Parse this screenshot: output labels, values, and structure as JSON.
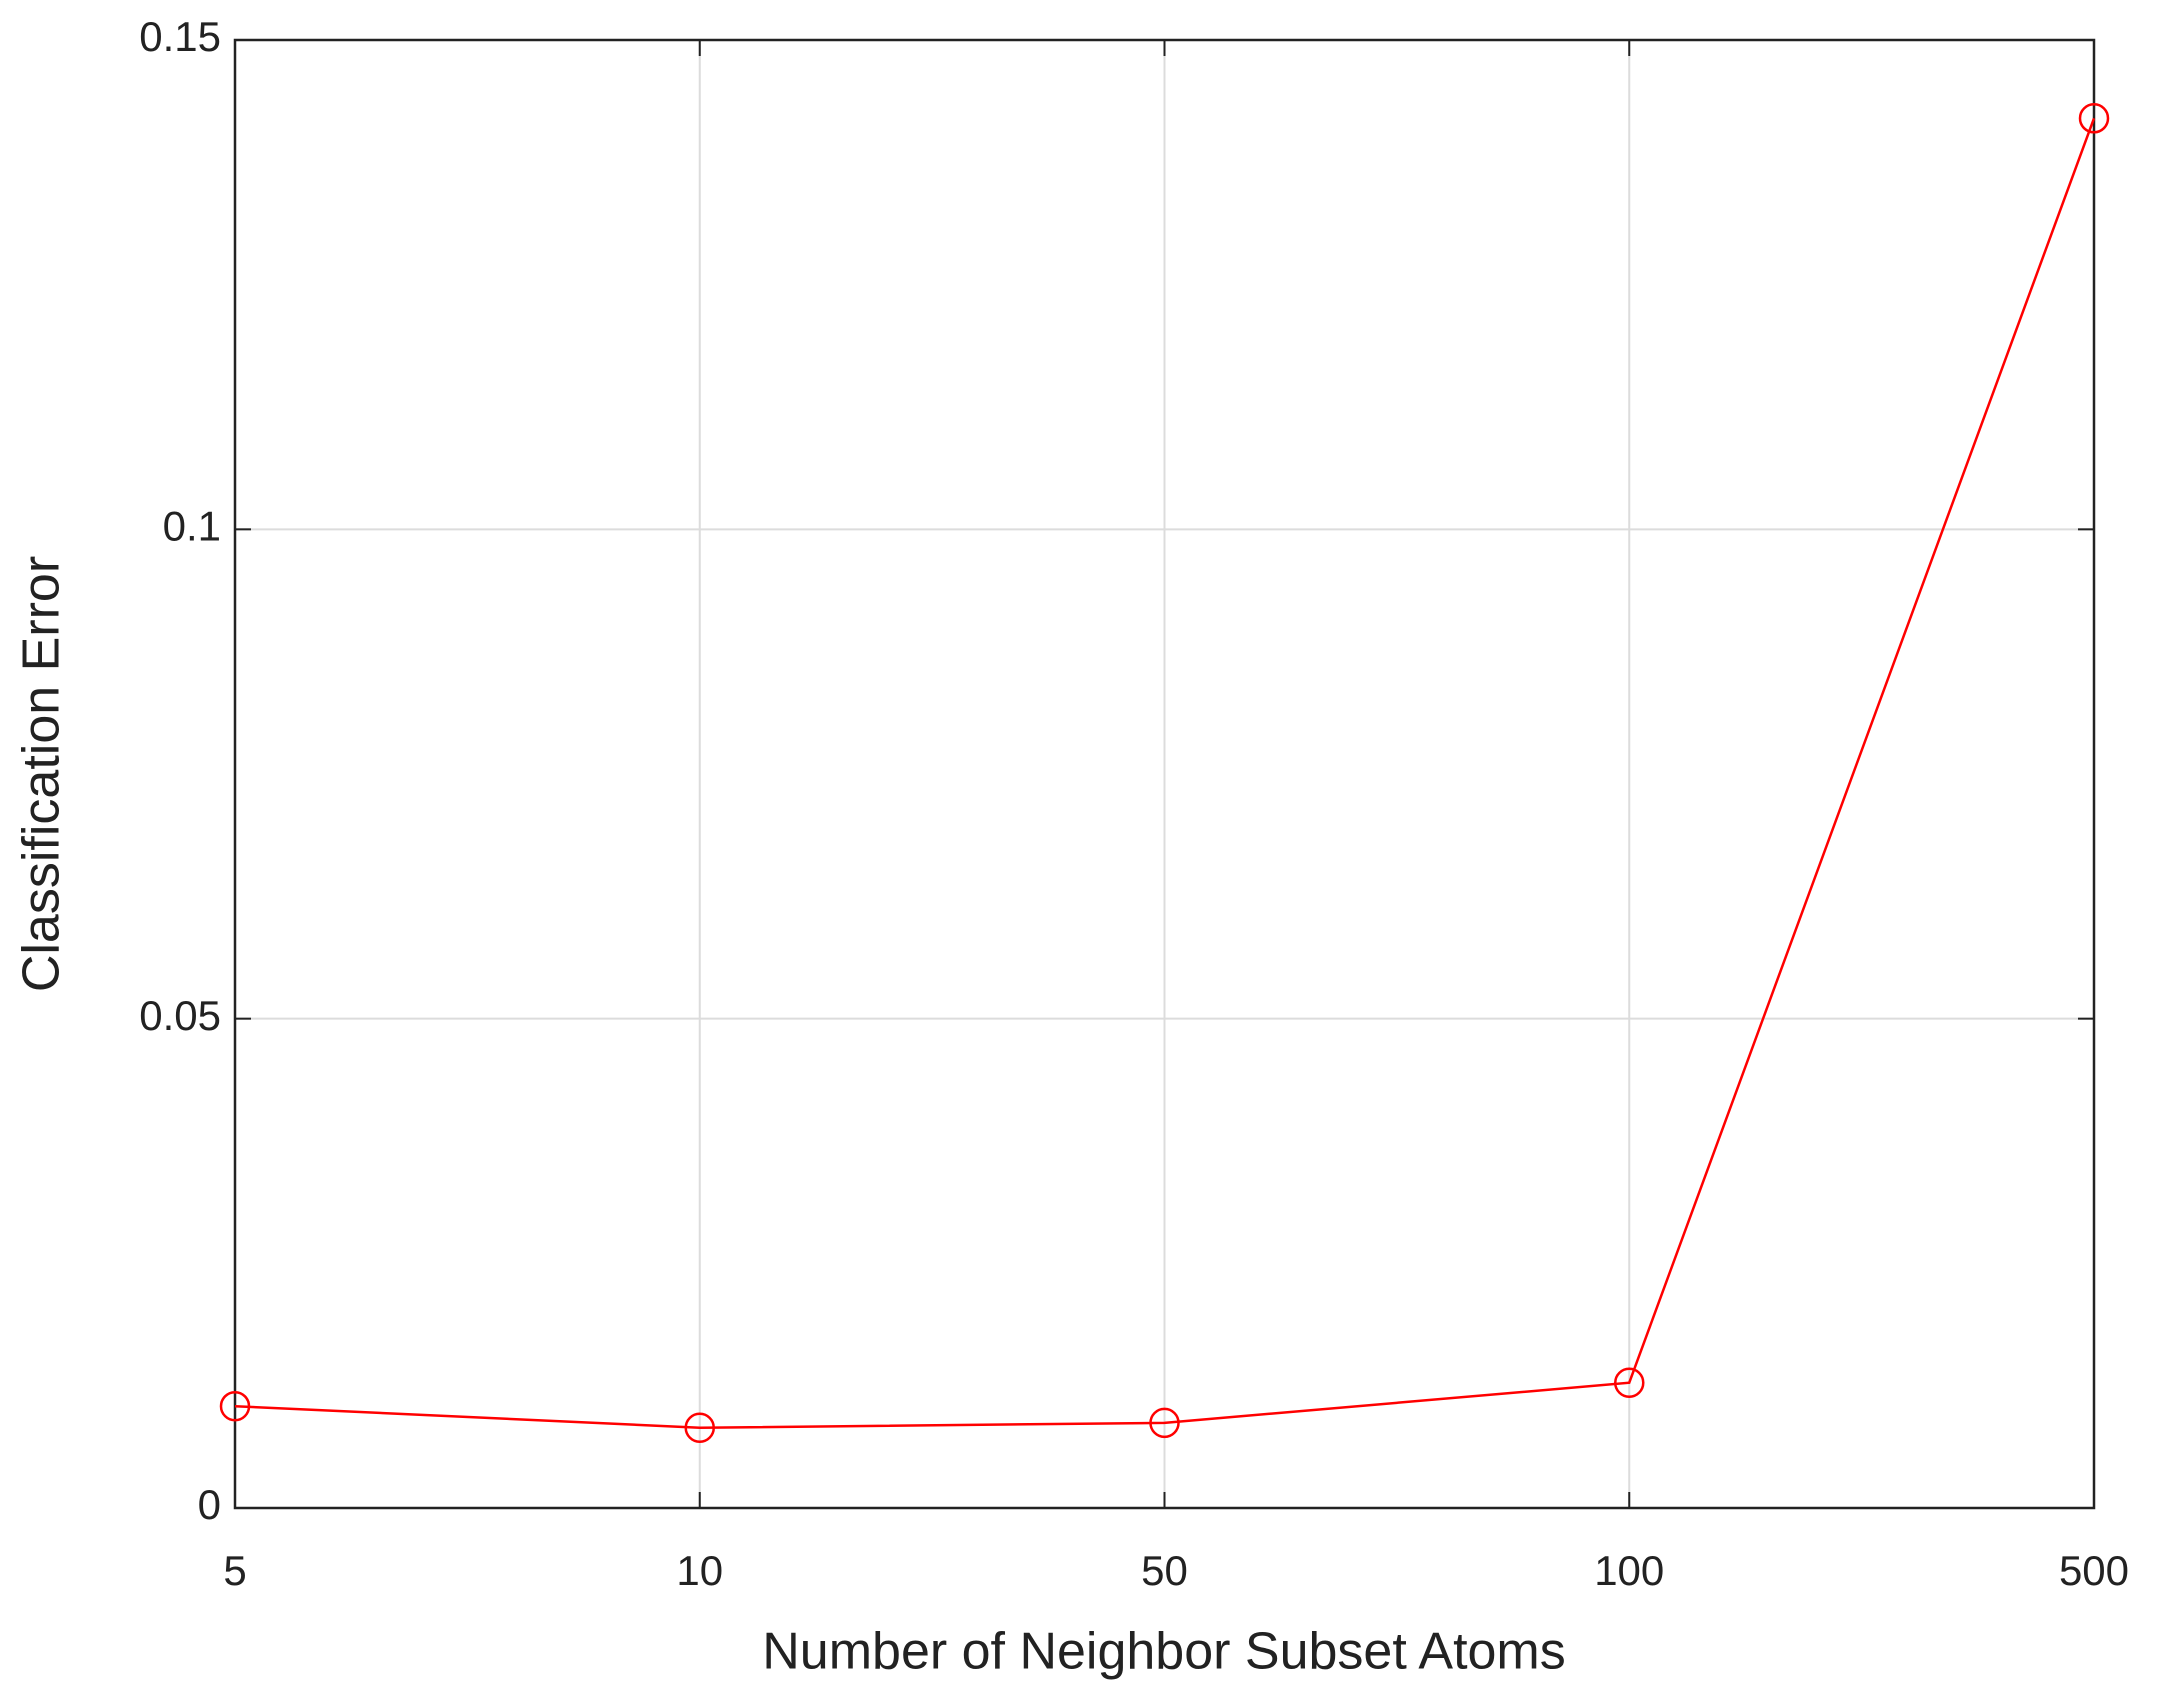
{
  "chart_data": {
    "type": "line",
    "xlabel": "Number of Neighbor Subset Atoms",
    "ylabel": "Classification Error",
    "categories": [
      "5",
      "10",
      "50",
      "100",
      "500"
    ],
    "series": [
      {
        "color": "#ff0000",
        "values": [
          0.0104,
          0.0082,
          0.0087,
          0.0128,
          0.142
        ]
      }
    ],
    "ylim": [
      0,
      0.15
    ],
    "yticks": [
      0,
      0.05,
      0.1,
      0.15
    ],
    "grid": true
  }
}
